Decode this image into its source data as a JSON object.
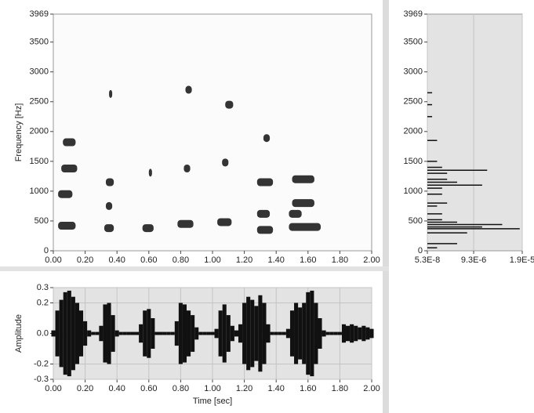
{
  "chart_data": [
    {
      "type": "spectrogram",
      "ylabel": "Frequency [Hz]",
      "xlim": [
        0,
        2
      ],
      "ylim": [
        0,
        3969
      ],
      "xticks": [
        {
          "value": 0,
          "label": "0.00"
        },
        {
          "value": 0.2,
          "label": "0.20"
        },
        {
          "value": 0.4,
          "label": "0.40"
        },
        {
          "value": 0.6,
          "label": "0.60"
        },
        {
          "value": 0.8,
          "label": "0.80"
        },
        {
          "value": 1,
          "label": "1.00"
        },
        {
          "value": 1.2,
          "label": "1.20"
        },
        {
          "value": 1.4,
          "label": "1.40"
        },
        {
          "value": 1.6,
          "label": "1.60"
        },
        {
          "value": 1.8,
          "label": "1.80"
        },
        {
          "value": 2,
          "label": "2.00"
        }
      ],
      "yticks": [
        0,
        500,
        1000,
        1500,
        2000,
        2500,
        3000,
        3500,
        3969
      ],
      "color": "#111111",
      "x": [
        0.03,
        0.03,
        0.05,
        0.06,
        0.32,
        0.33,
        0.33,
        0.35,
        0.56,
        0.6,
        0.78,
        0.82,
        0.83,
        1.03,
        1.06,
        1.08,
        1.28,
        1.28,
        1.28,
        1.32,
        1.48,
        1.5,
        1.5,
        1.48
      ],
      "x_end": [
        0.14,
        0.12,
        0.15,
        0.14,
        0.38,
        0.38,
        0.37,
        0.37,
        0.63,
        0.62,
        0.88,
        0.86,
        0.87,
        1.12,
        1.1,
        1.13,
        1.38,
        1.38,
        1.36,
        1.36,
        1.68,
        1.64,
        1.64,
        1.56
      ],
      "values": [
        420,
        950,
        1380,
        1820,
        380,
        1150,
        750,
        2630,
        380,
        1310,
        450,
        1380,
        2700,
        480,
        1480,
        2450,
        350,
        1150,
        620,
        1890,
        400,
        1200,
        800,
        620
      ]
    },
    {
      "type": "spectrum",
      "xlim": [
        5.3e-08,
        1.9e-05
      ],
      "ylim": [
        0,
        3969
      ],
      "xticks": [
        {
          "value": 5.3e-08,
          "label": "5.3E-8"
        },
        {
          "value": 9.3e-06,
          "label": "9.3E-6"
        },
        {
          "value": 1.9e-05,
          "label": "1.9E-5"
        }
      ],
      "yticks": [
        0,
        500,
        1000,
        1500,
        2000,
        2500,
        3000,
        3500,
        3969
      ],
      "color": "#111111",
      "x": [
        50,
        120,
        300,
        370,
        400,
        440,
        480,
        520,
        620,
        750,
        800,
        950,
        1050,
        1100,
        1150,
        1200,
        1300,
        1350,
        1400,
        1500,
        1850,
        2250,
        2450,
        2650
      ],
      "values": [
        2e-06,
        6e-06,
        8e-06,
        1.85e-05,
        1.1e-05,
        1.5e-05,
        6e-06,
        3e-06,
        3e-06,
        2e-06,
        4e-06,
        3e-06,
        3e-06,
        1.1e-05,
        6e-06,
        4e-06,
        4e-06,
        1.2e-05,
        3e-06,
        2e-06,
        2e-06,
        1e-06,
        1e-06,
        1e-06
      ]
    },
    {
      "type": "waveform",
      "xlabel": "Time [sec]",
      "ylabel": "Amplitude",
      "xlim": [
        0,
        2
      ],
      "ylim": [
        -0.3,
        0.3
      ],
      "xticks": [
        {
          "value": 0,
          "label": "0.00"
        },
        {
          "value": 0.2,
          "label": "0.20"
        },
        {
          "value": 0.4,
          "label": "0.40"
        },
        {
          "value": 0.6,
          "label": "0.60"
        },
        {
          "value": 0.8,
          "label": "0.80"
        },
        {
          "value": 1,
          "label": "1.00"
        },
        {
          "value": 1.2,
          "label": "1.20"
        },
        {
          "value": 1.4,
          "label": "1.40"
        },
        {
          "value": 1.6,
          "label": "1.60"
        },
        {
          "value": 1.8,
          "label": "1.80"
        },
        {
          "value": 2,
          "label": "2.00"
        }
      ],
      "yticks": [
        -0.3,
        -0.2,
        {
          "value": 0,
          "label": "0.0"
        },
        0.2,
        0.3
      ],
      "color": "#111111",
      "x": [
        0,
        0.025,
        0.05,
        0.075,
        0.1,
        0.125,
        0.15,
        0.175,
        0.2,
        0.225,
        0.25,
        0.275,
        0.3,
        0.325,
        0.35,
        0.375,
        0.4,
        0.425,
        0.45,
        0.475,
        0.5,
        0.525,
        0.55,
        0.575,
        0.6,
        0.625,
        0.65,
        0.675,
        0.7,
        0.725,
        0.75,
        0.775,
        0.8,
        0.825,
        0.85,
        0.875,
        0.9,
        0.925,
        0.95,
        0.975,
        1,
        1.025,
        1.05,
        1.075,
        1.1,
        1.125,
        1.15,
        1.175,
        1.2,
        1.225,
        1.25,
        1.275,
        1.3,
        1.325,
        1.35,
        1.375,
        1.4,
        1.425,
        1.45,
        1.475,
        1.5,
        1.525,
        1.55,
        1.575,
        1.6,
        1.625,
        1.65,
        1.675,
        1.7,
        1.725,
        1.75,
        1.775,
        1.8,
        1.825,
        1.85,
        1.875,
        1.9,
        1.925,
        1.95,
        1.975,
        2
      ],
      "values": [
        0.02,
        0.15,
        0.22,
        0.27,
        0.28,
        0.24,
        0.2,
        0.15,
        0.08,
        0.02,
        0.01,
        0.01,
        0.05,
        0.19,
        0.2,
        0.12,
        0.02,
        0.01,
        0.01,
        0.01,
        0.01,
        0.01,
        0.06,
        0.15,
        0.16,
        0.1,
        0.01,
        0.01,
        0.01,
        0.01,
        0.01,
        0.08,
        0.2,
        0.19,
        0.15,
        0.12,
        0.04,
        0.01,
        0.01,
        0.01,
        0.01,
        0.03,
        0.15,
        0.19,
        0.12,
        0.05,
        0.02,
        0.06,
        0.2,
        0.24,
        0.22,
        0.18,
        0.25,
        0.2,
        0.06,
        0.01,
        0.01,
        0.01,
        0.01,
        0.03,
        0.15,
        0.2,
        0.17,
        0.2,
        0.27,
        0.28,
        0.2,
        0.1,
        0.02,
        0.01,
        0.01,
        0.01,
        0.01,
        0.06,
        0.05,
        0.06,
        0.05,
        0.04,
        0.05,
        0.04,
        0.03
      ]
    }
  ]
}
